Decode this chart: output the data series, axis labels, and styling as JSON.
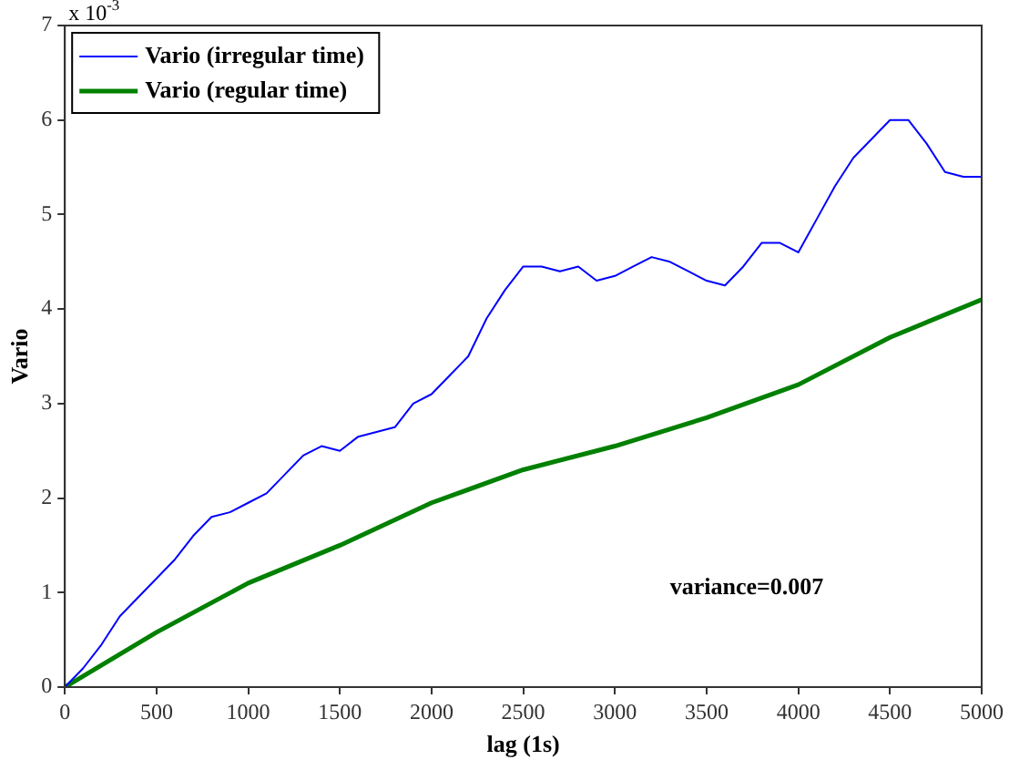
{
  "chart_data": {
    "type": "line",
    "xlabel": "lag (1s)",
    "ylabel": "Vario",
    "x": [
      0,
      100,
      200,
      300,
      400,
      500,
      600,
      700,
      800,
      900,
      1000,
      1100,
      1200,
      1300,
      1400,
      1500,
      1600,
      1700,
      1800,
      1900,
      2000,
      2100,
      2200,
      2300,
      2400,
      2500,
      2600,
      2700,
      2800,
      2900,
      3000,
      3100,
      3200,
      3300,
      3400,
      3500,
      3600,
      3700,
      3800,
      3900,
      4000,
      4100,
      4200,
      4300,
      4400,
      4500,
      4600,
      4700,
      4800,
      4900,
      5000
    ],
    "series": [
      {
        "name": "Vario (irregular time)",
        "color": "#0000ff",
        "values": [
          0,
          0.2,
          0.45,
          0.75,
          0.95,
          1.15,
          1.35,
          1.6,
          1.8,
          1.85,
          1.95,
          2.05,
          2.25,
          2.45,
          2.55,
          2.5,
          2.65,
          2.7,
          2.75,
          3.0,
          3.1,
          3.3,
          3.5,
          3.9,
          4.2,
          4.45,
          4.45,
          4.4,
          4.45,
          4.3,
          4.35,
          4.45,
          4.55,
          4.5,
          4.4,
          4.3,
          4.25,
          4.45,
          4.7,
          4.7,
          4.6,
          4.95,
          5.3,
          5.6,
          5.8,
          6.0,
          6.0,
          5.75,
          5.45,
          5.4,
          5.4
        ]
      },
      {
        "name": "Vario (regular time)",
        "color": "#008000",
        "x": [
          0,
          500,
          1000,
          1500,
          2000,
          2500,
          3000,
          3500,
          4000,
          4500,
          5000
        ],
        "values": [
          0,
          0.58,
          1.1,
          1.5,
          1.95,
          2.3,
          2.55,
          2.85,
          3.2,
          3.7,
          4.1
        ]
      }
    ],
    "xlim": [
      0,
      5000
    ],
    "xticks": [
      0,
      500,
      1000,
      1500,
      2000,
      2500,
      3000,
      3500,
      4000,
      4500,
      5000
    ],
    "ylim": [
      0,
      7
    ],
    "yticks": [
      0,
      1,
      2,
      3,
      4,
      5,
      6,
      7
    ],
    "grid": false,
    "legend": "top left",
    "marker": "none",
    "line_style": "solid",
    "annotations": [
      "x 10$^{-3}$",
      "variance=0.007"
    ]
  }
}
